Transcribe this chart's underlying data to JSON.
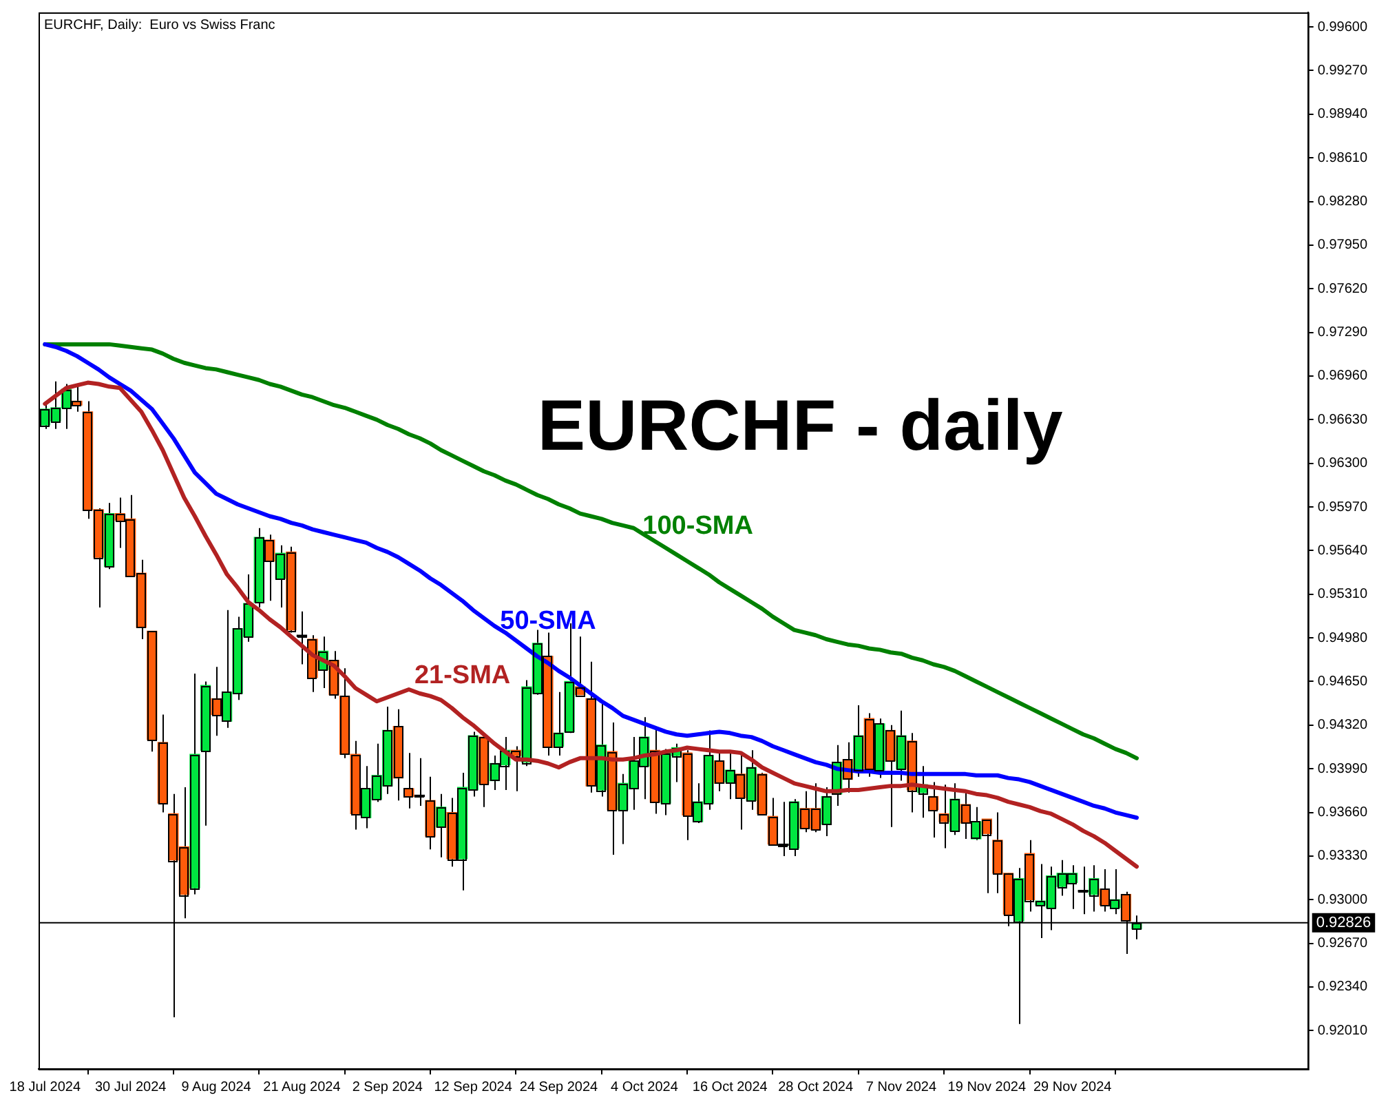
{
  "chart_data": {
    "type": "candlestick",
    "title": "EURCHF - daily",
    "subtitle": "EURCHF, Daily:  Euro vs Swiss Franc",
    "categories": [
      "18 Jul 2024",
      null,
      null,
      null,
      null,
      null,
      null,
      null,
      "30 Jul 2024",
      null,
      null,
      null,
      null,
      null,
      null,
      null,
      "9 Aug 2024",
      null,
      null,
      null,
      null,
      null,
      null,
      null,
      "21 Aug 2024",
      null,
      null,
      null,
      null,
      null,
      null,
      null,
      "2 Sep 2024",
      null,
      null,
      null,
      null,
      null,
      null,
      null,
      "12 Sep 2024",
      null,
      null,
      null,
      null,
      null,
      null,
      null,
      "24 Sep 2024",
      null,
      null,
      null,
      null,
      null,
      null,
      null,
      "4 Oct 2024",
      null,
      null,
      null,
      null,
      null,
      null,
      null,
      "16 Oct 2024",
      null,
      null,
      null,
      null,
      null,
      null,
      null,
      "28 Oct 2024",
      null,
      null,
      null,
      null,
      null,
      null,
      null,
      "7 Nov 2024",
      null,
      null,
      null,
      null,
      null,
      null,
      null,
      "19 Nov 2024",
      null,
      null,
      null,
      null,
      null,
      null,
      null,
      "29 Nov 2024",
      null,
      null,
      null,
      null,
      null,
      null
    ],
    "series": [
      {
        "type": "candlestick",
        "ohlc": [
          [
            0.9659,
            0.9675,
            0.9656,
            0.9671
          ],
          [
            0.9662,
            0.9692,
            0.9656,
            0.9672
          ],
          [
            0.9672,
            0.969,
            0.9656,
            0.9686
          ],
          [
            0.9677,
            0.969,
            0.9669,
            0.9674
          ],
          [
            0.9669,
            0.9677,
            0.9588,
            0.9595
          ],
          [
            0.9595,
            0.9596,
            0.9521,
            0.9559
          ],
          [
            0.9552,
            0.96,
            0.955,
            0.9592
          ],
          [
            0.9592,
            0.9604,
            0.9566,
            0.9587
          ],
          [
            0.9588,
            0.9606,
            0.9544,
            0.9545
          ],
          [
            0.9547,
            0.9557,
            0.9497,
            0.9506
          ],
          [
            0.9503,
            0.9503,
            0.9412,
            0.9421
          ],
          [
            0.9419,
            0.944,
            0.9366,
            0.9373
          ],
          [
            0.9365,
            0.938,
            0.9211,
            0.933
          ],
          [
            0.934,
            0.9385,
            0.9286,
            0.9304
          ],
          [
            0.9309,
            0.9471,
            0.9304,
            0.941
          ],
          [
            0.9413,
            0.9465,
            0.9356,
            0.9462
          ],
          [
            0.9452,
            0.9476,
            0.9424,
            0.944
          ],
          [
            0.9435,
            0.9519,
            0.943,
            0.9457
          ],
          [
            0.9456,
            0.9514,
            0.9451,
            0.9505
          ],
          [
            0.9499,
            0.9546,
            0.9495,
            0.9524
          ],
          [
            0.9525,
            0.9581,
            0.9521,
            0.9574
          ],
          [
            0.9572,
            0.9576,
            0.9526,
            0.9556
          ],
          [
            0.9543,
            0.9568,
            0.9521,
            0.9562
          ],
          [
            0.9563,
            0.9567,
            0.9502,
            0.9504
          ],
          [
            0.9499,
            0.9518,
            0.9478,
            0.9499
          ],
          [
            0.9497,
            0.95,
            0.9457,
            0.9468
          ],
          [
            0.9474,
            0.9499,
            0.946,
            0.9488
          ],
          [
            0.9481,
            0.9488,
            0.9452,
            0.9455
          ],
          [
            0.9454,
            0.9475,
            0.9407,
            0.941
          ],
          [
            0.941,
            0.942,
            0.9353,
            0.9365
          ],
          [
            0.9362,
            0.9401,
            0.9354,
            0.9384
          ],
          [
            0.9376,
            0.9418,
            0.9374,
            0.9394
          ],
          [
            0.9386,
            0.9446,
            0.938,
            0.9428
          ],
          [
            0.9431,
            0.9444,
            0.9375,
            0.9392
          ],
          [
            0.9384,
            0.9411,
            0.9369,
            0.9378
          ],
          [
            0.9378,
            0.9407,
            0.9371,
            0.9378
          ],
          [
            0.9375,
            0.9393,
            0.9338,
            0.9348
          ],
          [
            0.9355,
            0.938,
            0.9332,
            0.937
          ],
          [
            0.9366,
            0.9377,
            0.9325,
            0.9331
          ],
          [
            0.9331,
            0.9396,
            0.9307,
            0.9385
          ],
          [
            0.9383,
            0.9427,
            0.9378,
            0.9424
          ],
          [
            0.9423,
            0.9426,
            0.937,
            0.9388
          ],
          [
            0.939,
            0.9409,
            0.9383,
            0.9403
          ],
          [
            0.9402,
            0.9423,
            0.9383,
            0.9413
          ],
          [
            0.9413,
            0.9416,
            0.9382,
            0.9409
          ],
          [
            0.9404,
            0.9466,
            0.9401,
            0.9461
          ],
          [
            0.9456,
            0.9504,
            0.9455,
            0.9494
          ],
          [
            0.9484,
            0.9502,
            0.9409,
            0.9415
          ],
          [
            0.9416,
            0.9457,
            0.9409,
            0.9426
          ],
          [
            0.9427,
            0.9509,
            0.9426,
            0.9465
          ],
          [
            0.9461,
            0.9499,
            0.9455,
            0.9455
          ],
          [
            0.9452,
            0.948,
            0.9381,
            0.9386
          ],
          [
            0.9383,
            0.9449,
            0.9378,
            0.9417
          ],
          [
            0.9412,
            0.9434,
            0.9334,
            0.9368
          ],
          [
            0.9368,
            0.9395,
            0.9342,
            0.9388
          ],
          [
            0.9384,
            0.9423,
            0.9368,
            0.9405
          ],
          [
            0.9401,
            0.9438,
            0.9376,
            0.9423
          ],
          [
            0.9413,
            0.9429,
            0.9365,
            0.9374
          ],
          [
            0.9373,
            0.9414,
            0.9364,
            0.9411
          ],
          [
            0.9409,
            0.9418,
            0.9389,
            0.9415
          ],
          [
            0.9411,
            0.9413,
            0.9345,
            0.9364
          ],
          [
            0.9359,
            0.9388,
            0.9358,
            0.9374
          ],
          [
            0.9373,
            0.9428,
            0.9368,
            0.9409
          ],
          [
            0.9405,
            0.9411,
            0.9382,
            0.9388
          ],
          [
            0.9389,
            0.9411,
            0.9376,
            0.9398
          ],
          [
            0.9395,
            0.9409,
            0.9353,
            0.9377
          ],
          [
            0.9375,
            0.9413,
            0.9368,
            0.94
          ],
          [
            0.9395,
            0.9396,
            0.9364,
            0.9365
          ],
          [
            0.9363,
            0.9377,
            0.9341,
            0.9342
          ],
          [
            0.9341,
            0.9374,
            0.9333,
            0.9341
          ],
          [
            0.9339,
            0.9376,
            0.9333,
            0.9374
          ],
          [
            0.9369,
            0.9382,
            0.9351,
            0.9354
          ],
          [
            0.9369,
            0.9388,
            0.9351,
            0.9353
          ],
          [
            0.9357,
            0.9385,
            0.9348,
            0.9378
          ],
          [
            0.938,
            0.9417,
            0.9371,
            0.9404
          ],
          [
            0.9406,
            0.9419,
            0.9381,
            0.9391
          ],
          [
            0.9398,
            0.9447,
            0.9393,
            0.9424
          ],
          [
            0.9437,
            0.9441,
            0.9393,
            0.9399
          ],
          [
            0.9398,
            0.9437,
            0.9392,
            0.9433
          ],
          [
            0.9428,
            0.9432,
            0.9355,
            0.9405
          ],
          [
            0.9399,
            0.9443,
            0.939,
            0.9424
          ],
          [
            0.942,
            0.9426,
            0.9366,
            0.9383
          ],
          [
            0.9381,
            0.9401,
            0.9362,
            0.9387
          ],
          [
            0.9378,
            0.9389,
            0.9347,
            0.9368
          ],
          [
            0.9365,
            0.9387,
            0.9339,
            0.9359
          ],
          [
            0.9352,
            0.9388,
            0.9349,
            0.9376
          ],
          [
            0.9372,
            0.9383,
            0.9346,
            0.9358
          ],
          [
            0.9346,
            0.937,
            0.9345,
            0.9359
          ],
          [
            0.9361,
            0.9361,
            0.9305,
            0.935
          ],
          [
            0.9345,
            0.9366,
            0.9305,
            0.932
          ],
          [
            0.932,
            0.932,
            0.928,
            0.9289
          ],
          [
            0.9284,
            0.9324,
            0.9206,
            0.9316
          ],
          [
            0.9335,
            0.9345,
            0.9291,
            0.93
          ],
          [
            0.9296,
            0.9327,
            0.9271,
            0.9299
          ],
          [
            0.9294,
            0.9325,
            0.9277,
            0.9318
          ],
          [
            0.931,
            0.933,
            0.9303,
            0.932
          ],
          [
            0.9313,
            0.9326,
            0.9293,
            0.932
          ],
          [
            0.9306,
            0.9325,
            0.9289,
            0.9306
          ],
          [
            0.9304,
            0.9326,
            0.9291,
            0.9316
          ],
          [
            0.9308,
            0.9323,
            0.9291,
            0.9296
          ],
          [
            0.9294,
            0.9323,
            0.9289,
            0.93
          ],
          [
            0.9304,
            0.9306,
            0.9259,
            0.9284
          ],
          [
            0.9278,
            0.9288,
            0.927,
            0.92826
          ]
        ],
        "colors": [
          "#00e640",
          "#00e640",
          "#00e640",
          "#ff5b0a",
          "#ff5b0a",
          "#ff5b0a",
          "#00e640",
          "#ff5b0a",
          "#ff5b0a",
          "#ff5b0a",
          "#ff5b0a",
          "#ff5b0a",
          "#ff5b0a",
          "#ff5b0a",
          "#00e640",
          "#00e640",
          "#ff5b0a",
          "#00e640",
          "#00e640",
          "#00e640",
          "#00e640",
          "#ff5b0a",
          "#00e640",
          "#ff5b0a",
          "#000000",
          "#ff5b0a",
          "#00e640",
          "#ff5b0a",
          "#ff5b0a",
          "#ff5b0a",
          "#00e640",
          "#00e640",
          "#00e640",
          "#ff5b0a",
          "#ff5b0a",
          "#000000",
          "#ff5b0a",
          "#00e640",
          "#ff5b0a",
          "#00e640",
          "#00e640",
          "#ff5b0a",
          "#00e640",
          "#00e640",
          "#ff5b0a",
          "#00e640",
          "#00e640",
          "#ff5b0a",
          "#00e640",
          "#00e640",
          "#ff5b0a",
          "#ff5b0a",
          "#00e640",
          "#ff5b0a",
          "#00e640",
          "#00e640",
          "#00e640",
          "#ff5b0a",
          "#00e640",
          "#00e640",
          "#ff5b0a",
          "#00e640",
          "#00e640",
          "#ff5b0a",
          "#00e640",
          "#ff5b0a",
          "#00e640",
          "#ff5b0a",
          "#ff5b0a",
          "#000000",
          "#00e640",
          "#ff5b0a",
          "#ff5b0a",
          "#00e640",
          "#00e640",
          "#ff5b0a",
          "#00e640",
          "#ff5b0a",
          "#00e640",
          "#ff5b0a",
          "#00e640",
          "#ff5b0a",
          "#00e640",
          "#ff5b0a",
          "#ff5b0a",
          "#00e640",
          "#ff5b0a",
          "#00e640",
          "#ff5b0a",
          "#ff5b0a",
          "#ff5b0a",
          "#00e640",
          "#ff5b0a",
          "#00e640",
          "#00e640",
          "#00e640",
          "#00e640",
          "#000000",
          "#00e640",
          "#ff5b0a",
          "#00e640",
          "#ff5b0a",
          "#00e640"
        ]
      },
      {
        "type": "line",
        "name": "21-SMA",
        "color": "#b22222",
        "values": [
          0.9675,
          0.9681,
          0.9687,
          0.9689,
          0.9691,
          0.969,
          0.9688,
          0.9687,
          0.9678,
          0.9669,
          0.9655,
          0.964,
          0.9622,
          0.9604,
          0.959,
          0.9575,
          0.9561,
          0.9546,
          0.9536,
          0.9525,
          0.9519,
          0.9512,
          0.9506,
          0.9499,
          0.9492,
          0.9485,
          0.9481,
          0.9477,
          0.9469,
          0.946,
          0.9455,
          0.945,
          0.9453,
          0.9456,
          0.9459,
          0.9456,
          0.9454,
          0.9451,
          0.9445,
          0.9438,
          0.9432,
          0.9425,
          0.9418,
          0.9412,
          0.9406,
          0.9406,
          0.9405,
          0.9403,
          0.94,
          0.9404,
          0.9407,
          0.9407,
          0.9407,
          0.9406,
          0.9406,
          0.9407,
          0.9409,
          0.941,
          0.9412,
          0.9413,
          0.9415,
          0.9414,
          0.9413,
          0.9412,
          0.9412,
          0.9411,
          0.9406,
          0.94,
          0.9396,
          0.9392,
          0.9388,
          0.9386,
          0.9384,
          0.9382,
          0.9382,
          0.9383,
          0.9383,
          0.9384,
          0.9385,
          0.9386,
          0.9386,
          0.9387,
          0.9386,
          0.9385,
          0.9384,
          0.9383,
          0.9382,
          0.938,
          0.9379,
          0.9377,
          0.9374,
          0.9372,
          0.937,
          0.9367,
          0.9365,
          0.9361,
          0.9357,
          0.9352,
          0.9348,
          0.9343,
          0.9337,
          0.9331,
          0.9325
        ]
      },
      {
        "type": "line",
        "name": "50-SMA",
        "color": "#0000ff",
        "values": [
          0.972,
          0.9718,
          0.9715,
          0.9711,
          0.9706,
          0.9701,
          0.9695,
          0.969,
          0.9685,
          0.9678,
          0.9671,
          0.966,
          0.9649,
          0.9636,
          0.9623,
          0.9615,
          0.9607,
          0.9603,
          0.9599,
          0.9596,
          0.9593,
          0.959,
          0.9588,
          0.9585,
          0.9583,
          0.958,
          0.9578,
          0.9576,
          0.9574,
          0.9572,
          0.957,
          0.9566,
          0.9563,
          0.9559,
          0.9554,
          0.9549,
          0.9543,
          0.9538,
          0.9532,
          0.9526,
          0.9519,
          0.9513,
          0.9507,
          0.9502,
          0.9496,
          0.949,
          0.9484,
          0.9479,
          0.9473,
          0.9468,
          0.9462,
          0.9456,
          0.945,
          0.9445,
          0.9439,
          0.9436,
          0.9433,
          0.943,
          0.9427,
          0.9425,
          0.9424,
          0.9425,
          0.9426,
          0.9427,
          0.9426,
          0.9424,
          0.9423,
          0.942,
          0.9416,
          0.9413,
          0.941,
          0.9407,
          0.9404,
          0.9402,
          0.9399,
          0.9398,
          0.9397,
          0.9397,
          0.9396,
          0.9396,
          0.9396,
          0.9395,
          0.9395,
          0.9395,
          0.9395,
          0.9395,
          0.9395,
          0.9394,
          0.9394,
          0.9394,
          0.9392,
          0.9391,
          0.9389,
          0.9386,
          0.9383,
          0.938,
          0.9377,
          0.9374,
          0.9371,
          0.9369,
          0.9366,
          0.9364,
          0.9362
        ]
      },
      {
        "type": "line",
        "name": "100-SMA",
        "color": "#008000",
        "values": [
          0.972,
          0.972,
          0.972,
          0.972,
          0.972,
          0.972,
          0.972,
          0.9719,
          0.9718,
          0.9717,
          0.9716,
          0.9713,
          0.9709,
          0.9706,
          0.9704,
          0.9702,
          0.9701,
          0.9699,
          0.9697,
          0.9695,
          0.9693,
          0.969,
          0.9688,
          0.9685,
          0.9682,
          0.968,
          0.9677,
          0.9674,
          0.9672,
          0.9669,
          0.9666,
          0.9663,
          0.9659,
          0.9656,
          0.9652,
          0.9649,
          0.9645,
          0.964,
          0.9636,
          0.9632,
          0.9628,
          0.9624,
          0.9621,
          0.9617,
          0.9614,
          0.961,
          0.9606,
          0.9603,
          0.9599,
          0.9596,
          0.9592,
          0.959,
          0.9588,
          0.9585,
          0.9583,
          0.9581,
          0.9576,
          0.9571,
          0.9566,
          0.9561,
          0.9556,
          0.9551,
          0.9546,
          0.954,
          0.9535,
          0.953,
          0.9525,
          0.952,
          0.9514,
          0.9509,
          0.9504,
          0.9502,
          0.95,
          0.9497,
          0.9495,
          0.9493,
          0.9492,
          0.949,
          0.9489,
          0.9487,
          0.9486,
          0.9483,
          0.9481,
          0.9478,
          0.9476,
          0.9473,
          0.9469,
          0.9465,
          0.9461,
          0.9457,
          0.9453,
          0.9449,
          0.9445,
          0.9441,
          0.9437,
          0.9433,
          0.9429,
          0.9425,
          0.9422,
          0.9418,
          0.9414,
          0.9411,
          0.9407
        ]
      }
    ],
    "ylim": [
      0.9172,
      0.9971
    ],
    "yticks": [
      {
        "value": 0.996,
        "label": "0.99600"
      },
      {
        "value": 0.9927,
        "label": "0.99270"
      },
      {
        "value": 0.9894,
        "label": "0.98940"
      },
      {
        "value": 0.9861,
        "label": "0.98610"
      },
      {
        "value": 0.9828,
        "label": "0.98280"
      },
      {
        "value": 0.9795,
        "label": "0.97950"
      },
      {
        "value": 0.9762,
        "label": "0.97620"
      },
      {
        "value": 0.9729,
        "label": "0.97290"
      },
      {
        "value": 0.9696,
        "label": "0.96960"
      },
      {
        "value": 0.9663,
        "label": "0.96630"
      },
      {
        "value": 0.963,
        "label": "0.96300"
      },
      {
        "value": 0.9597,
        "label": "0.95970"
      },
      {
        "value": 0.9564,
        "label": "0.95640"
      },
      {
        "value": 0.9531,
        "label": "0.95310"
      },
      {
        "value": 0.9498,
        "label": "0.94980"
      },
      {
        "value": 0.9465,
        "label": "0.94650"
      },
      {
        "value": 0.9432,
        "label": "0.94320"
      },
      {
        "value": 0.9399,
        "label": "0.93990"
      },
      {
        "value": 0.9366,
        "label": "0.93660"
      },
      {
        "value": 0.9333,
        "label": "0.93330"
      },
      {
        "value": 0.93,
        "label": "0.93000"
      },
      {
        "value": 0.9267,
        "label": "0.92670"
      },
      {
        "value": 0.9234,
        "label": "0.92340"
      },
      {
        "value": 0.9201,
        "label": "0.92010"
      }
    ],
    "ref_lines": [
      {
        "axis": "y",
        "value": 0.92826,
        "label": "0.92826",
        "color": "#000000"
      }
    ],
    "grid": false,
    "legend": false
  }
}
